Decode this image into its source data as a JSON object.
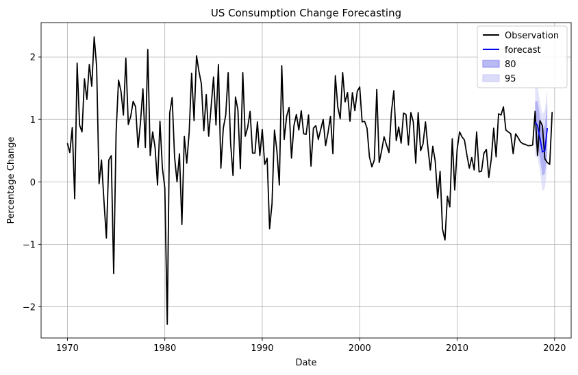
{
  "chart_data": {
    "type": "line",
    "title": "US Consumption Change Forecasting",
    "xlabel": "Date",
    "ylabel": "Percentage Change",
    "xlim": [
      1967.3,
      2021.7
    ],
    "ylim": [
      -2.5,
      2.55
    ],
    "x_ticks": [
      1970,
      1980,
      1990,
      2000,
      2010,
      2020
    ],
    "x_tick_labels": [
      "1970",
      "1980",
      "1990",
      "2000",
      "2010",
      "2020"
    ],
    "y_ticks": [
      -2,
      -1,
      0,
      1,
      2
    ],
    "y_tick_labels": [
      "−2",
      "−1",
      "0",
      "1",
      "2"
    ],
    "grid": true,
    "legend_position": "top-right",
    "colors": {
      "observation": "#000000",
      "forecast": "#0000ee",
      "band80": "#7777ee",
      "band95": "#ccccf6"
    },
    "legend": [
      {
        "label": "Observation",
        "kind": "line",
        "color": "#000000"
      },
      {
        "label": "forecast",
        "kind": "line",
        "color": "#0000ee"
      },
      {
        "label": "80",
        "kind": "patch",
        "color": "#b9b9f4"
      },
      {
        "label": "95",
        "kind": "patch",
        "color": "#dcdcf9"
      }
    ],
    "series": [
      {
        "name": "Observation",
        "start_year": 1970.0,
        "step_years": 0.25,
        "values": [
          0.62,
          0.47,
          0.87,
          -0.27,
          1.9,
          0.91,
          0.8,
          1.65,
          1.32,
          1.88,
          1.53,
          2.32,
          1.85,
          -0.03,
          0.35,
          -0.3,
          -0.9,
          0.35,
          0.42,
          -1.47,
          0.8,
          1.63,
          1.45,
          1.07,
          1.98,
          0.92,
          1.05,
          1.29,
          1.2,
          0.55,
          0.95,
          1.49,
          0.55,
          2.12,
          0.42,
          0.8,
          0.55,
          -0.05,
          0.97,
          0.22,
          -0.1,
          -2.28,
          1.1,
          1.35,
          0.4,
          0.0,
          0.45,
          -0.68,
          0.73,
          0.3,
          0.8,
          1.74,
          0.98,
          2.02,
          1.77,
          1.57,
          0.82,
          1.4,
          0.73,
          1.2,
          1.68,
          0.91,
          1.88,
          0.22,
          0.86,
          1.07,
          1.75,
          0.62,
          0.1,
          1.36,
          1.15,
          0.21,
          1.75,
          0.73,
          0.87,
          1.13,
          0.46,
          0.46,
          0.96,
          0.42,
          0.84,
          0.28,
          0.38,
          -0.75,
          -0.35,
          0.83,
          0.5,
          -0.05,
          1.86,
          0.68,
          1.05,
          1.19,
          0.38,
          0.9,
          1.08,
          0.83,
          1.14,
          0.77,
          0.76,
          1.07,
          0.25,
          0.86,
          0.9,
          0.68,
          0.84,
          1.0,
          0.58,
          0.79,
          1.05,
          0.45,
          1.7,
          1.2,
          1.01,
          1.75,
          1.28,
          1.43,
          0.97,
          1.43,
          1.14,
          1.45,
          1.52,
          0.96,
          0.97,
          0.86,
          0.4,
          0.24,
          0.35,
          1.48,
          0.31,
          0.5,
          0.72,
          0.59,
          0.47,
          1.11,
          1.46,
          0.66,
          0.88,
          0.62,
          1.1,
          1.08,
          0.59,
          1.11,
          0.96,
          0.3,
          1.11,
          0.5,
          0.61,
          0.96,
          0.55,
          0.19,
          0.57,
          0.33,
          -0.26,
          0.17,
          -0.76,
          -0.93,
          -0.23,
          -0.4,
          0.69,
          -0.13,
          0.52,
          0.8,
          0.72,
          0.67,
          0.43,
          0.22,
          0.39,
          0.19,
          0.8,
          0.16,
          0.17,
          0.46,
          0.52,
          0.07,
          0.36,
          0.86,
          0.4,
          1.09,
          1.07,
          1.2,
          0.83,
          0.8,
          0.77,
          0.45,
          0.77,
          0.71,
          0.64,
          0.61,
          0.6,
          0.58,
          0.58,
          0.59,
          1.13,
          0.42,
          0.98,
          0.9,
          0.37,
          0.31,
          0.28,
          1.12
        ]
      },
      {
        "name": "forecast",
        "x": [
          2018.0,
          2018.25,
          2018.5,
          2018.75,
          2019.0,
          2019.25
        ],
        "values": [
          0.96,
          0.9,
          0.7,
          0.48,
          0.5,
          0.86
        ],
        "lower80": [
          0.62,
          0.58,
          0.38,
          0.1,
          0.13,
          0.45
        ],
        "upper80": [
          1.28,
          1.3,
          1.05,
          0.82,
          0.9,
          1.26
        ],
        "lower95": [
          0.42,
          0.38,
          0.18,
          -0.15,
          -0.1,
          0.25
        ],
        "upper95": [
          1.5,
          1.55,
          1.28,
          1.08,
          1.15,
          1.48
        ]
      }
    ]
  }
}
